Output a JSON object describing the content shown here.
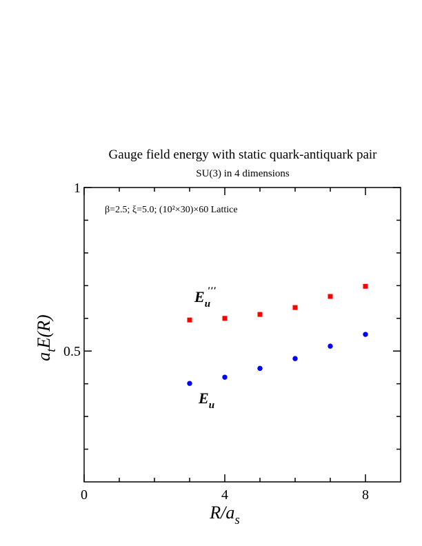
{
  "chart_data": {
    "type": "scatter",
    "title": "Gauge field energy with static quark-antiquark pair",
    "subtitle": "SU(3) in 4 dimensions",
    "annotation": "β=2.5;  ξ=5.0;  (10²×30)×60 Lattice",
    "x_label": {
      "main": "R/a",
      "sub": "s"
    },
    "y_label": {
      "pre": "a",
      "sub": "t",
      "main": "E(R)"
    },
    "xlim": [
      0,
      9
    ],
    "xticks": [
      0,
      4,
      8
    ],
    "xminorticks": [
      1,
      2,
      3,
      5,
      6,
      7
    ],
    "ylim": [
      0.1,
      1
    ],
    "yticks": [
      0.5,
      1
    ],
    "yminorticks": [
      0.2,
      0.3,
      0.4,
      0.6,
      0.7,
      0.8,
      0.9
    ],
    "series": [
      {
        "name_base": "E",
        "name_sub": "u",
        "name_sup": "′′′",
        "color": "#ff0000",
        "marker": "square",
        "x": [
          3,
          4,
          5,
          6,
          7,
          8
        ],
        "values": [
          0.595,
          0.6,
          0.612,
          0.633,
          0.667,
          0.698
        ]
      },
      {
        "name_base": "E",
        "name_sub": "u",
        "color": "#0000ff",
        "marker": "circle",
        "x": [
          3,
          4,
          5,
          6,
          7,
          8
        ],
        "values": [
          0.401,
          0.42,
          0.447,
          0.477,
          0.515,
          0.551
        ]
      }
    ]
  }
}
